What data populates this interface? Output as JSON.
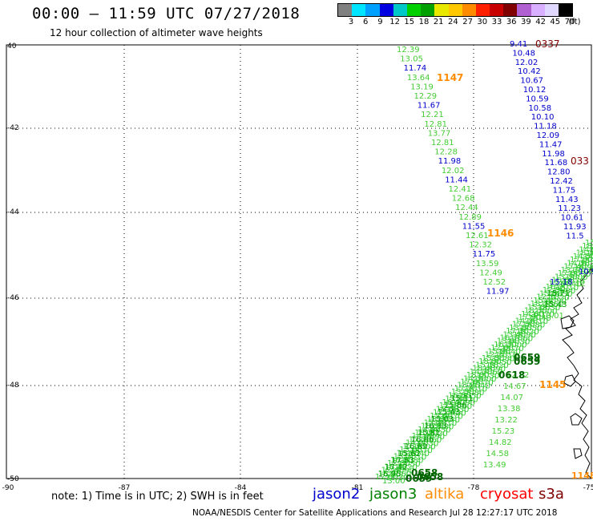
{
  "header": {
    "title": "00:00 – 11:59 UTC 07/27/2018",
    "subtitle": "12 hour collection of altimeter wave heights"
  },
  "legend": {
    "unit": "(ft)",
    "colors": [
      "#808080",
      "#00e5ff",
      "#00a0ff",
      "#0000e0",
      "#00c8c8",
      "#00d000",
      "#00a000",
      "#e8e800",
      "#ffc800",
      "#ff8c00",
      "#ff2000",
      "#c80000",
      "#800000",
      "#b060d0",
      "#d8b0ff",
      "#e0d8ff",
      "#000000"
    ],
    "labels": [
      "3",
      "6",
      "9",
      "12",
      "15",
      "18",
      "21",
      "24",
      "27",
      "30",
      "33",
      "36",
      "39",
      "42",
      "45",
      "70"
    ]
  },
  "map": {
    "lat_labels": [
      "40",
      "-42",
      "-44",
      "-46",
      "-48",
      "-50"
    ],
    "lon_labels": [
      "-90",
      "-87",
      "-84",
      "-81",
      "-78",
      "-75"
    ]
  },
  "tracks": {
    "jason2_a": {
      "color": "#0000cc",
      "time_label": "0337",
      "time_color": "#800000",
      "values": [
        "9.41",
        "10.48",
        "12.02",
        "10.42",
        "10.67",
        "10.12",
        "10.59",
        "10.58",
        "10.10",
        "11.18",
        "12.09",
        "11.47",
        "11.98",
        "11.68",
        "12.80",
        "12.42",
        "11.75",
        "11.43",
        "11.23",
        "10.61",
        "11.93",
        "11.5"
      ]
    },
    "jason2_b": {
      "time_label": "033",
      "time_color": "#800000"
    },
    "altika_1147": {
      "time_label": "1147",
      "time_color": "#ff8c00"
    },
    "altika_1146": {
      "time_label": "1146",
      "time_color": "#ff8c00"
    },
    "altika_1145": {
      "time_label": "1145",
      "time_color": "#ff8c00"
    },
    "track_west": {
      "values": [
        "12.39",
        "13.05",
        "11.74",
        "13.64",
        "13.19",
        "12.29",
        "11.67",
        "12.21",
        "12.81",
        "13.77",
        "12.81",
        "12.28",
        "11.98",
        "12.02",
        "11.44",
        "12.41",
        "12.68",
        "12.44",
        "12.89",
        "11.55",
        "12.61",
        "12.32",
        "11.75",
        "13.59",
        "12.49",
        "12.52",
        "11.97"
      ]
    },
    "track_east": {
      "values": [
        "15.18",
        "15.71",
        "15.43",
        "13.01",
        "12.22",
        "14.67",
        "14.07",
        "13.38",
        "13.22",
        "15.23",
        "14.82",
        "14.58",
        "13.49"
      ]
    },
    "jason3_times": [
      "0659",
      "0659",
      "0618",
      "0658",
      "0659",
      "0658"
    ],
    "track_sw": {
      "values": [
        "15.11",
        "15.86",
        "15.43",
        "15.03",
        "16.33",
        "15.81",
        "16.86",
        "16.69",
        "15.62",
        "17.63",
        "17.42",
        "16.95"
      ]
    }
  },
  "bottom": {
    "note": "note: 1) Time is in UTC; 2) SWH is in feet",
    "satellites": [
      {
        "name": "jason2",
        "color": "#0000cc"
      },
      {
        "name": "jason3",
        "color": "#008000"
      },
      {
        "name": "altika",
        "color": "#ff8c00"
      },
      {
        "name": "cryosat",
        "color": "#ff0000"
      },
      {
        "name": "s3a",
        "color": "#800000"
      }
    ],
    "footer": "NOAA/NESDIS Center for Satellite Applications and Research    Jul 28 12:27:17 UTC 2018"
  }
}
